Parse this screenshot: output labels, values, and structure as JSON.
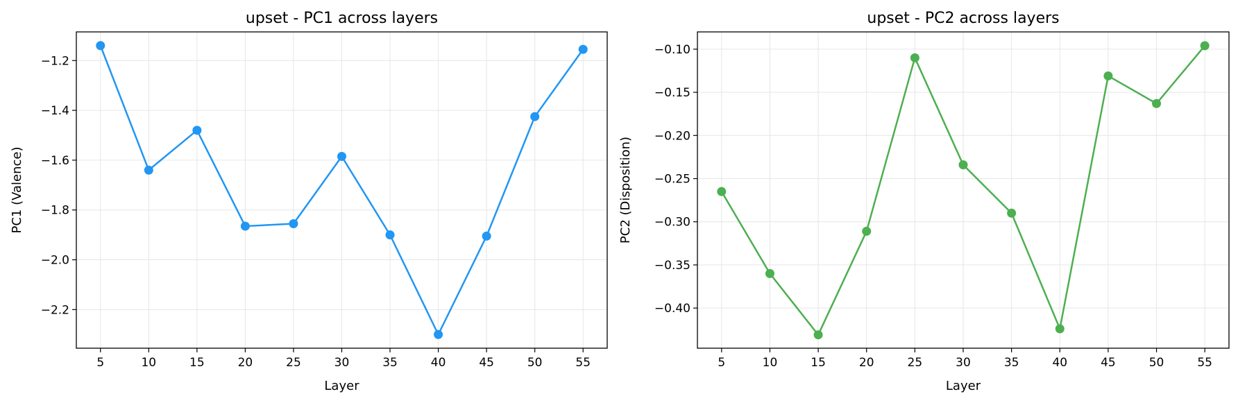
{
  "chart_data": [
    {
      "type": "line",
      "title": "upset - PC1 across layers",
      "xlabel": "Layer",
      "ylabel": "PC1 (Valence)",
      "x": [
        5,
        10,
        15,
        20,
        25,
        30,
        35,
        40,
        45,
        50,
        55
      ],
      "series": [
        {
          "values": [
            -1.14,
            -1.64,
            -1.48,
            -1.865,
            -1.855,
            -1.585,
            -1.9,
            -2.3,
            -1.905,
            -1.425,
            -1.155
          ]
        }
      ],
      "color": "#2196f3",
      "xlim": [
        2.5,
        57.5
      ],
      "ylim": [
        -2.355,
        -1.085
      ],
      "xticks": [
        5,
        10,
        15,
        20,
        25,
        30,
        35,
        40,
        45,
        50,
        55
      ],
      "yticks": [
        -2.2,
        -2.0,
        -1.8,
        -1.6,
        -1.4,
        -1.2
      ],
      "ytick_labels": [
        "−2.2",
        "−2.0",
        "−1.8",
        "−1.6",
        "−1.4",
        "−1.2"
      ],
      "grid": true
    },
    {
      "type": "line",
      "title": "upset - PC2 across layers",
      "xlabel": "Layer",
      "ylabel": "PC2 (Disposition)",
      "x": [
        5,
        10,
        15,
        20,
        25,
        30,
        35,
        40,
        45,
        50,
        55
      ],
      "series": [
        {
          "values": [
            -0.265,
            -0.36,
            -0.431,
            -0.311,
            -0.11,
            -0.234,
            -0.29,
            -0.424,
            -0.131,
            -0.163,
            -0.096
          ]
        }
      ],
      "color": "#4caf50",
      "xlim": [
        2.5,
        57.5
      ],
      "ylim": [
        -0.4465,
        -0.08
      ],
      "xticks": [
        5,
        10,
        15,
        20,
        25,
        30,
        35,
        40,
        45,
        50,
        55
      ],
      "yticks": [
        -0.4,
        -0.35,
        -0.3,
        -0.25,
        -0.2,
        -0.15,
        -0.1
      ],
      "ytick_labels": [
        "−0.40",
        "−0.35",
        "−0.30",
        "−0.25",
        "−0.20",
        "−0.15",
        "−0.10"
      ],
      "grid": true
    }
  ]
}
